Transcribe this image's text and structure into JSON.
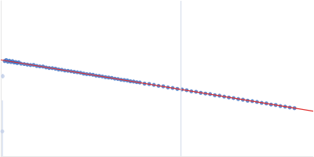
{
  "chart_data": {
    "type": "scatter",
    "xlim": [
      0,
      400
    ],
    "ylim": [
      0,
      200
    ],
    "tick_labels": false,
    "grid": false,
    "reference_x": 230,
    "series": [
      {
        "type": "scatter",
        "marker": "circle",
        "color": "#c3d0e8",
        "x": [
          2.5,
          2
        ],
        "values": [
          103,
          32
        ],
        "errors": [
          3,
          40
        ]
      },
      {
        "type": "scatter",
        "marker": "circle",
        "color": "#3a6bbf",
        "x": [
          5,
          7,
          9,
          11,
          13,
          15,
          17,
          19,
          21,
          23,
          26,
          30,
          34,
          38,
          42,
          46,
          50,
          54,
          58,
          62,
          66,
          70,
          74,
          78,
          82,
          86,
          90,
          94,
          98,
          102,
          106,
          110,
          114,
          118,
          122,
          126,
          130,
          134,
          138,
          142,
          146,
          150,
          154,
          158,
          162,
          166,
          170,
          174,
          178,
          184,
          190,
          196,
          202,
          208,
          214,
          220,
          226,
          232,
          238,
          244,
          250,
          256,
          262,
          268,
          274,
          280,
          286,
          292,
          298,
          304,
          310,
          316,
          322,
          328,
          334,
          340,
          346,
          352,
          358,
          364,
          370,
          376
        ],
        "values": [
          122.5,
          123.8,
          121.6,
          122.9,
          121.2,
          122.4,
          120.6,
          121.3,
          119.8,
          120.9,
          119.1,
          118.6,
          117.9,
          117.3,
          117.4,
          116.2,
          115.6,
          115.4,
          114.2,
          113.5,
          113.3,
          112.6,
          111.6,
          111.2,
          110.3,
          109.9,
          109.3,
          108.6,
          108.0,
          107.4,
          106.3,
          105.6,
          105.4,
          104.8,
          103.7,
          103.3,
          102.6,
          101.8,
          101.3,
          100.8,
          99.8,
          99.3,
          98.4,
          98.0,
          97.5,
          96.5,
          96.1,
          95.3,
          94.8,
          93.4,
          92.9,
          91.8,
          90.6,
          89.9,
          88.5,
          87.8,
          86.6,
          85.9,
          84.9,
          83.5,
          82.9,
          81.6,
          80.6,
          79.9,
          78.5,
          77.9,
          76.7,
          75.6,
          74.8,
          73.6,
          72.7,
          71.5,
          70.9,
          69.8,
          68.6,
          67.9,
          66.5,
          65.9,
          64.6,
          63.8,
          62.7,
          61.9
        ]
      },
      {
        "type": "line",
        "line_style": "solid",
        "color": "#e03030",
        "x": [
          0,
          400
        ],
        "values": [
          124,
          58
        ]
      }
    ]
  }
}
